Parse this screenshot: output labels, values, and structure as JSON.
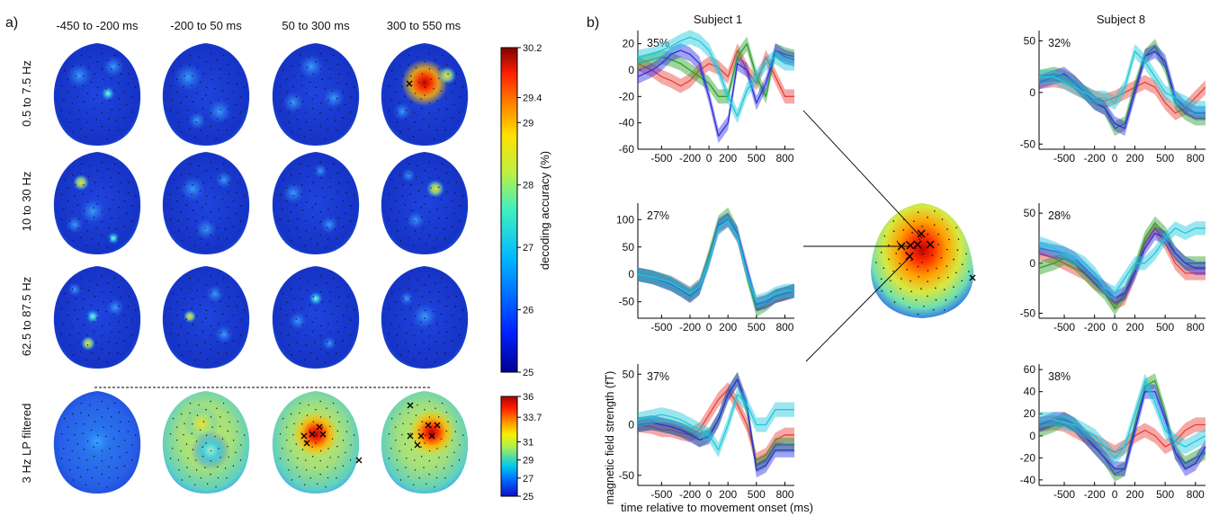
{
  "panel_a": {
    "label": "a)",
    "time_windows": [
      "-450 to -200 ms",
      "-200 to 50 ms",
      "50 to 300 ms",
      "300 to 550 ms"
    ],
    "bands": [
      "0.5 to 7.5 Hz",
      "10 to 30 Hz",
      "62.5 to 87.5 Hz",
      "3 Hz LP filtered"
    ],
    "colorbar_main": {
      "ticks": [
        "30.2",
        "29.4",
        "29",
        "28",
        "27",
        "26",
        "25"
      ],
      "tick_values": [
        30.2,
        29.4,
        29,
        28,
        27,
        26,
        25
      ],
      "label": "decoding accuracy (%)"
    },
    "colorbar_lp": {
      "ticks": [
        "36",
        "33.7",
        "31",
        "29",
        "27",
        "25"
      ],
      "tick_values": [
        36,
        33.7,
        31,
        29,
        27,
        25
      ]
    }
  },
  "panel_b": {
    "label": "b)",
    "subject_left": "Subject 1",
    "subject_right": "Subject 8",
    "ylabel": "magnetic field strength (fT)",
    "xlabel": "time relative to movement onset (ms)"
  },
  "colors": {
    "red": "#e8403a",
    "green": "#2aa02a",
    "blue": "#3030e0",
    "cyan": "#20c8dc"
  },
  "chart_data": [
    {
      "type": "heatmap",
      "title": "",
      "rows": [
        "0.5 to 7.5 Hz",
        "10 to 30 Hz",
        "62.5 to 87.5 Hz",
        "3 Hz LP filtered"
      ],
      "cols": [
        "-450 to -200 ms",
        "-200 to 50 ms",
        "50 to 300 ms",
        "300 to 550 ms"
      ],
      "peak_decoding_accuracy": [
        [
          27.5,
          26.5,
          27,
          30
        ],
        [
          27.5,
          26.5,
          26.5,
          27.5
        ],
        [
          27.5,
          27,
          26.5,
          25.5
        ],
        [
          27,
          30,
          34.5,
          34.5
        ]
      ],
      "colorbar_range_main": [
        25,
        30.2
      ],
      "colorbar_range_lp": [
        25,
        36
      ]
    },
    {
      "type": "line",
      "title": "Subject 1",
      "label": "35%",
      "x": [
        -750,
        -600,
        -500,
        -400,
        -300,
        -200,
        -100,
        0,
        100,
        200,
        300,
        400,
        500,
        600,
        700,
        800,
        900
      ],
      "xticks": [
        -500,
        -200,
        0,
        200,
        500,
        800
      ],
      "xlim": [
        -750,
        900
      ],
      "ylim": [
        -60,
        30
      ],
      "yticks": [
        20,
        0,
        -20,
        -40,
        -60
      ],
      "series": [
        {
          "color": "red",
          "values": [
            5,
            0,
            -5,
            -8,
            -12,
            -8,
            0,
            5,
            2,
            -5,
            15,
            0,
            -10,
            10,
            -5,
            -20,
            -20
          ]
        },
        {
          "color": "green",
          "values": [
            5,
            8,
            10,
            8,
            5,
            0,
            -5,
            -10,
            -20,
            -20,
            10,
            20,
            -5,
            -20,
            15,
            12,
            10
          ]
        },
        {
          "color": "blue",
          "values": [
            -5,
            0,
            5,
            12,
            15,
            12,
            5,
            -20,
            -50,
            -40,
            5,
            0,
            -25,
            -10,
            15,
            10,
            8
          ]
        },
        {
          "color": "cyan",
          "values": [
            10,
            12,
            15,
            18,
            22,
            25,
            22,
            15,
            0,
            -20,
            -35,
            -15,
            -5,
            5,
            10,
            5,
            5
          ]
        }
      ]
    },
    {
      "type": "line",
      "title": "Subject 1",
      "label": "27%",
      "x": [
        -750,
        -600,
        -500,
        -400,
        -300,
        -200,
        -100,
        0,
        100,
        200,
        300,
        400,
        500,
        600,
        700,
        800,
        900
      ],
      "xticks": [
        -500,
        -200,
        0,
        200,
        500,
        800
      ],
      "xlim": [
        -750,
        900
      ],
      "ylim": [
        -80,
        130
      ],
      "yticks": [
        100,
        50,
        0,
        -50
      ],
      "series": [
        {
          "color": "red",
          "values": [
            0,
            -5,
            -10,
            -15,
            -25,
            -35,
            -20,
            30,
            85,
            100,
            70,
            0,
            -55,
            -50,
            -40,
            -35,
            -30
          ]
        },
        {
          "color": "green",
          "values": [
            0,
            -5,
            -10,
            -18,
            -28,
            -38,
            -25,
            35,
            95,
            110,
            75,
            0,
            -65,
            -55,
            -40,
            -35,
            -30
          ]
        },
        {
          "color": "blue",
          "values": [
            0,
            -5,
            -12,
            -18,
            -28,
            -40,
            -25,
            25,
            90,
            100,
            75,
            10,
            -55,
            -50,
            -40,
            -35,
            -30
          ]
        },
        {
          "color": "cyan",
          "values": [
            0,
            -5,
            -10,
            -15,
            -25,
            -35,
            -22,
            25,
            85,
            98,
            70,
            0,
            -50,
            -45,
            -35,
            -30,
            -30
          ]
        }
      ]
    },
    {
      "type": "line",
      "title": "Subject 1",
      "label": "37%",
      "x": [
        -750,
        -600,
        -500,
        -400,
        -300,
        -200,
        -100,
        0,
        100,
        200,
        300,
        400,
        500,
        600,
        700,
        800,
        900
      ],
      "xticks": [
        -500,
        -200,
        0,
        200,
        500,
        800
      ],
      "xlim": [
        -750,
        900
      ],
      "ylim": [
        -60,
        60
      ],
      "yticks": [
        50,
        0,
        -50
      ],
      "series": [
        {
          "color": "red",
          "values": [
            0,
            -2,
            -5,
            -5,
            -8,
            -10,
            -5,
            10,
            25,
            35,
            20,
            0,
            -35,
            -30,
            -15,
            -10,
            -10
          ]
        },
        {
          "color": "green",
          "values": [
            0,
            2,
            0,
            -2,
            -5,
            -8,
            -15,
            -10,
            5,
            30,
            45,
            15,
            -40,
            -35,
            -20,
            -20,
            -20
          ]
        },
        {
          "color": "blue",
          "values": [
            0,
            2,
            0,
            -2,
            -5,
            -10,
            -15,
            -12,
            5,
            30,
            45,
            20,
            -45,
            -40,
            -25,
            -25,
            -25
          ]
        },
        {
          "color": "cyan",
          "values": [
            5,
            8,
            10,
            8,
            5,
            0,
            -5,
            -10,
            -25,
            0,
            30,
            20,
            0,
            0,
            15,
            15,
            15
          ]
        }
      ]
    },
    {
      "type": "line",
      "title": "Subject 8",
      "label": "32%",
      "x": [
        -750,
        -600,
        -500,
        -400,
        -300,
        -200,
        -100,
        0,
        100,
        200,
        300,
        400,
        500,
        600,
        700,
        800,
        900
      ],
      "xticks": [
        -500,
        -200,
        0,
        200,
        500,
        800
      ],
      "xlim": [
        -750,
        900
      ],
      "ylim": [
        -55,
        60
      ],
      "yticks": [
        50,
        0,
        -50
      ],
      "series": [
        {
          "color": "red",
          "values": [
            10,
            12,
            10,
            5,
            0,
            -5,
            -8,
            -5,
            0,
            5,
            10,
            5,
            -10,
            -20,
            -15,
            -5,
            5
          ]
        },
        {
          "color": "green",
          "values": [
            15,
            18,
            15,
            10,
            0,
            -10,
            -15,
            -35,
            -30,
            5,
            35,
            45,
            25,
            -10,
            -20,
            -25,
            -25
          ]
        },
        {
          "color": "blue",
          "values": [
            10,
            15,
            18,
            10,
            0,
            -10,
            -15,
            -30,
            -35,
            0,
            35,
            40,
            30,
            -5,
            -15,
            -20,
            -20
          ]
        },
        {
          "color": "cyan",
          "values": [
            15,
            15,
            10,
            5,
            0,
            -5,
            -5,
            -10,
            5,
            40,
            30,
            15,
            0,
            -5,
            -10,
            -15,
            -15
          ]
        }
      ]
    },
    {
      "type": "line",
      "title": "Subject 8",
      "label": "28%",
      "x": [
        -750,
        -600,
        -500,
        -400,
        -300,
        -200,
        -100,
        0,
        100,
        200,
        300,
        400,
        500,
        600,
        700,
        800,
        900
      ],
      "xticks": [
        -500,
        -200,
        0,
        200,
        500,
        800
      ],
      "xlim": [
        -750,
        900
      ],
      "ylim": [
        -55,
        60
      ],
      "yticks": [
        50,
        0,
        -50
      ],
      "series": [
        {
          "color": "red",
          "values": [
            10,
            5,
            0,
            -5,
            -10,
            -20,
            -25,
            -40,
            -35,
            -10,
            20,
            35,
            20,
            0,
            -10,
            -10,
            -10
          ]
        },
        {
          "color": "green",
          "values": [
            -5,
            0,
            5,
            0,
            -10,
            -20,
            -30,
            -45,
            -30,
            -5,
            25,
            40,
            30,
            10,
            0,
            0,
            0
          ]
        },
        {
          "color": "blue",
          "values": [
            15,
            12,
            10,
            5,
            -5,
            -15,
            -25,
            -35,
            -30,
            -10,
            15,
            30,
            25,
            10,
            0,
            -5,
            -5
          ]
        },
        {
          "color": "cyan",
          "values": [
            20,
            15,
            10,
            5,
            0,
            -10,
            -25,
            -30,
            -15,
            0,
            0,
            10,
            25,
            35,
            30,
            35,
            35
          ]
        }
      ]
    },
    {
      "type": "line",
      "title": "Subject 8",
      "label": "38%",
      "x": [
        -750,
        -600,
        -500,
        -400,
        -300,
        -200,
        -100,
        0,
        100,
        200,
        300,
        400,
        500,
        600,
        700,
        800,
        900
      ],
      "xticks": [
        -500,
        -200,
        0,
        200,
        500,
        800
      ],
      "xlim": [
        -750,
        900
      ],
      "ylim": [
        -45,
        65
      ],
      "yticks": [
        60,
        40,
        20,
        0,
        -20,
        -40
      ],
      "series": [
        {
          "color": "red",
          "values": [
            10,
            12,
            10,
            5,
            0,
            -5,
            -10,
            -15,
            -10,
            0,
            5,
            0,
            -10,
            -5,
            5,
            10,
            10
          ]
        },
        {
          "color": "green",
          "values": [
            5,
            10,
            15,
            10,
            0,
            -10,
            -20,
            -35,
            -30,
            10,
            45,
            50,
            20,
            -15,
            -25,
            -20,
            -15
          ]
        },
        {
          "color": "blue",
          "values": [
            10,
            15,
            15,
            10,
            0,
            -10,
            -20,
            -30,
            -30,
            5,
            40,
            40,
            15,
            -15,
            -30,
            -25,
            -10
          ]
        },
        {
          "color": "cyan",
          "values": [
            15,
            15,
            12,
            10,
            5,
            0,
            -10,
            -20,
            -10,
            20,
            50,
            30,
            5,
            -5,
            -10,
            -5,
            0
          ]
        }
      ]
    }
  ]
}
